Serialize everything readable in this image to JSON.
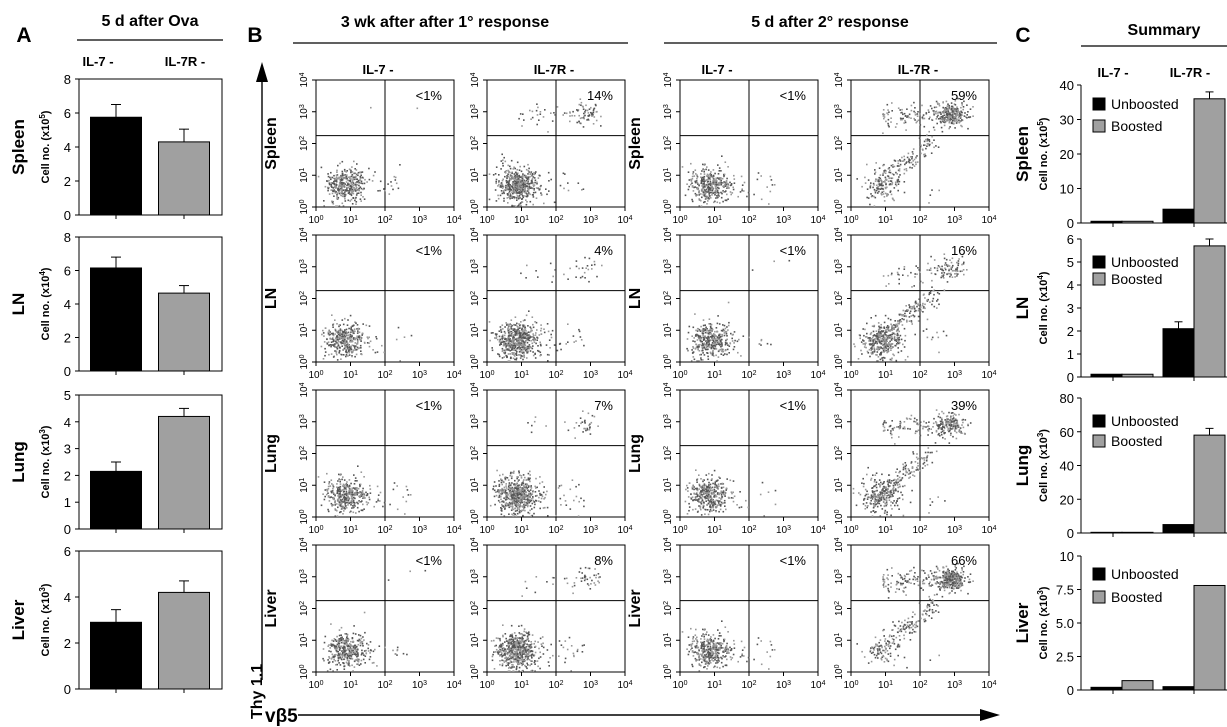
{
  "panels": {
    "A": {
      "letter": "A",
      "title": "5 d after Ova",
      "columns": [
        "IL-7 -",
        "IL-7R -"
      ],
      "ylabel_prefix": "Cell no. (x10",
      "ylabel_suffix": ")",
      "rows": [
        {
          "name": "Spleen",
          "exp": "5",
          "ylim": [
            0,
            8
          ],
          "ticks": [
            0,
            2,
            4,
            6,
            8
          ],
          "values": [
            5.75,
            4.3
          ],
          "errors": [
            0.75,
            0.75
          ],
          "colors": [
            "#000000",
            "#a0a0a0"
          ]
        },
        {
          "name": "LN",
          "exp": "4",
          "ylim": [
            0,
            8
          ],
          "ticks": [
            0,
            2,
            4,
            6,
            8
          ],
          "values": [
            6.15,
            4.65
          ],
          "errors": [
            0.65,
            0.45
          ],
          "colors": [
            "#000000",
            "#a0a0a0"
          ]
        },
        {
          "name": "Lung",
          "exp": "3",
          "ylim": [
            0,
            5
          ],
          "ticks": [
            0,
            1,
            2,
            3,
            4,
            5
          ],
          "values": [
            2.15,
            4.2
          ],
          "errors": [
            0.35,
            0.3
          ],
          "colors": [
            "#000000",
            "#a0a0a0"
          ]
        },
        {
          "name": "Liver",
          "exp": "3",
          "ylim": [
            0,
            6
          ],
          "ticks": [
            0,
            2,
            4,
            6
          ],
          "values": [
            2.9,
            4.2
          ],
          "errors": [
            0.55,
            0.5
          ],
          "colors": [
            "#000000",
            "#a0a0a0"
          ]
        }
      ]
    },
    "B": {
      "letter": "B",
      "group_titles": [
        "3 wk after after 1° response",
        "5 d after 2° response"
      ],
      "column_titles": [
        "IL-7 -",
        "IL-7R -",
        "IL-7 -",
        "IL-7R -"
      ],
      "row_labels": [
        "Spleen",
        "LN",
        "Lung",
        "Liver"
      ],
      "percentages": [
        [
          "<1%",
          "14%",
          "<1%",
          "59%"
        ],
        [
          "<1%",
          "4%",
          "<1%",
          "16%"
        ],
        [
          "<1%",
          "7%",
          "<1%",
          "39%"
        ],
        [
          "<1%",
          "8%",
          "<1%",
          "66%"
        ]
      ],
      "x_axis_label": "vβ5",
      "y_axis_label": "Thy 1.1",
      "tick_base": "10",
      "tick_exponents": [
        "0",
        "1",
        "2",
        "3",
        "4"
      ]
    },
    "C": {
      "letter": "C",
      "title": "Summary",
      "columns": [
        "IL-7 -",
        "IL-7R -"
      ],
      "legend": [
        "Unboosted",
        "Boosted"
      ],
      "legend_colors": [
        "#000000",
        "#a0a0a0"
      ],
      "ylabel_prefix": "Cell no. (x10",
      "ylabel_suffix": ")"
    }
  },
  "chart_data": [
    {
      "type": "bar",
      "title": "5 d after Ova",
      "subplot": "Spleen",
      "categories": [
        "IL-7 -",
        "IL-7R -"
      ],
      "values": [
        5.75,
        4.3
      ],
      "errors": [
        0.75,
        0.75
      ],
      "ylabel": "Cell no. (x10^5)",
      "ylim": [
        0,
        8
      ]
    },
    {
      "type": "bar",
      "title": "5 d after Ova",
      "subplot": "LN",
      "categories": [
        "IL-7 -",
        "IL-7R -"
      ],
      "values": [
        6.15,
        4.65
      ],
      "errors": [
        0.65,
        0.45
      ],
      "ylabel": "Cell no. (x10^4)",
      "ylim": [
        0,
        8
      ]
    },
    {
      "type": "bar",
      "title": "5 d after Ova",
      "subplot": "Lung",
      "categories": [
        "IL-7 -",
        "IL-7R -"
      ],
      "values": [
        2.15,
        4.2
      ],
      "errors": [
        0.35,
        0.3
      ],
      "ylabel": "Cell no. (x10^3)",
      "ylim": [
        0,
        5
      ]
    },
    {
      "type": "bar",
      "title": "5 d after Ova",
      "subplot": "Liver",
      "categories": [
        "IL-7 -",
        "IL-7R -"
      ],
      "values": [
        2.9,
        4.2
      ],
      "errors": [
        0.55,
        0.5
      ],
      "ylabel": "Cell no. (x10^3)",
      "ylim": [
        0,
        6
      ]
    },
    {
      "type": "bar",
      "title": "Summary",
      "subplot": "Spleen",
      "categories": [
        "IL-7 -",
        "IL-7R -"
      ],
      "ylabel": "Cell no. (x10^5)",
      "ylim": [
        0,
        40
      ],
      "ticks": [
        0,
        10,
        20,
        30,
        40
      ],
      "series": [
        {
          "name": "Unboosted",
          "values": [
            0.5,
            4.0
          ],
          "errors": [
            0,
            0
          ]
        },
        {
          "name": "Boosted",
          "values": [
            0.5,
            36.0
          ],
          "errors": [
            0,
            2.0
          ]
        }
      ]
    },
    {
      "type": "bar",
      "title": "Summary",
      "subplot": "LN",
      "categories": [
        "IL-7 -",
        "IL-7R -"
      ],
      "ylabel": "Cell no. (x10^4)",
      "ylim": [
        0,
        6
      ],
      "ticks": [
        0,
        1,
        2,
        3,
        4,
        5,
        6
      ],
      "series": [
        {
          "name": "Unboosted",
          "values": [
            0.12,
            2.1
          ],
          "errors": [
            0,
            0.3
          ]
        },
        {
          "name": "Boosted",
          "values": [
            0.12,
            5.7
          ],
          "errors": [
            0,
            0.3
          ]
        }
      ]
    },
    {
      "type": "bar",
      "title": "Summary",
      "subplot": "Lung",
      "categories": [
        "IL-7 -",
        "IL-7R -"
      ],
      "ylabel": "Cell no. (x10^3)",
      "ylim": [
        0,
        80
      ],
      "ticks": [
        0,
        20,
        40,
        60,
        80
      ],
      "series": [
        {
          "name": "Unboosted",
          "values": [
            0.4,
            5.0
          ],
          "errors": [
            0,
            0
          ]
        },
        {
          "name": "Boosted",
          "values": [
            0.4,
            58.0
          ],
          "errors": [
            0,
            4.0
          ]
        }
      ]
    },
    {
      "type": "bar",
      "title": "Summary",
      "subplot": "Liver",
      "categories": [
        "IL-7 -",
        "IL-7R -"
      ],
      "ylabel": "Cell no. (x10^3)",
      "ylim": [
        0,
        10
      ],
      "ticks": [
        0,
        2.5,
        5.0,
        7.5,
        10
      ],
      "tick_labels": [
        "0",
        "2.5",
        "5.0",
        "7.5",
        "10"
      ],
      "series": [
        {
          "name": "Unboosted",
          "values": [
            0.2,
            0.25
          ],
          "errors": [
            0,
            0
          ]
        },
        {
          "name": "Boosted",
          "values": [
            0.7,
            7.8
          ],
          "errors": [
            0,
            0
          ]
        }
      ]
    }
  ]
}
